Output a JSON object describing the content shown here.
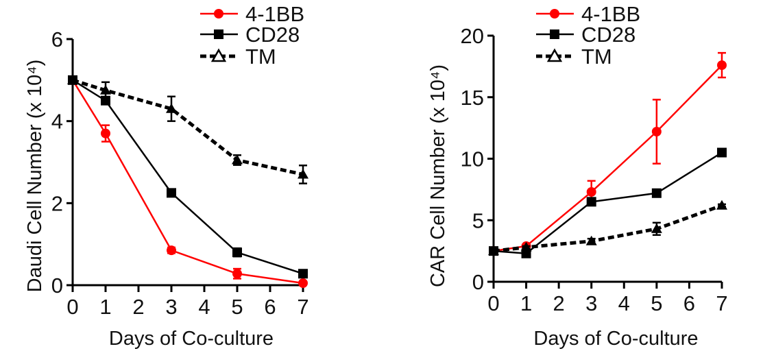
{
  "chart_data": [
    {
      "type": "line",
      "xlabel": "Days of Co-culture",
      "ylabel": "Daudi Cell Number (x 10⁴)",
      "xlim": [
        0,
        7
      ],
      "ylim": [
        0,
        6
      ],
      "xticks": [
        "0",
        "1",
        "2",
        "3",
        "4",
        "5",
        "6",
        "7"
      ],
      "yticks": [
        "0",
        "2",
        "4",
        "6"
      ],
      "grid": false,
      "legend": "top-right",
      "x": [
        0,
        1,
        3,
        5,
        7
      ],
      "series": [
        {
          "name": "4-1BB",
          "color": "#ff0000",
          "marker": "circle",
          "dash": false,
          "values": [
            5.0,
            3.7,
            0.85,
            0.28,
            0.05
          ],
          "errors": [
            0,
            0.2,
            0.07,
            0.12,
            0.03
          ]
        },
        {
          "name": "CD28",
          "color": "#000000",
          "marker": "square",
          "dash": false,
          "values": [
            5.0,
            4.5,
            2.25,
            0.8,
            0.28
          ],
          "errors": [
            0,
            0.05,
            0.05,
            0.1,
            0.04
          ]
        },
        {
          "name": "TM",
          "color": "#000000",
          "marker": "triangle",
          "dash": true,
          "values": [
            5.0,
            4.75,
            4.3,
            3.05,
            2.7
          ],
          "errors": [
            0,
            0.2,
            0.3,
            0.12,
            0.22
          ]
        }
      ]
    },
    {
      "type": "line",
      "xlabel": "Days of Co-culture",
      "ylabel": "CAR Cell Number (x 10⁴)",
      "xlim": [
        0,
        7
      ],
      "ylim": [
        0,
        20
      ],
      "xticks": [
        "0",
        "1",
        "2",
        "3",
        "4",
        "5",
        "6",
        "7"
      ],
      "yticks": [
        "0",
        "5",
        "10",
        "15",
        "20"
      ],
      "grid": false,
      "legend": "top",
      "x": [
        0,
        1,
        3,
        5,
        7
      ],
      "series": [
        {
          "name": "4-1BB",
          "color": "#ff0000",
          "marker": "circle",
          "dash": false,
          "values": [
            2.5,
            2.9,
            7.3,
            12.2,
            17.6
          ],
          "errors": [
            0,
            0.1,
            0.9,
            2.6,
            1.0
          ]
        },
        {
          "name": "CD28",
          "color": "#000000",
          "marker": "square",
          "dash": false,
          "values": [
            2.5,
            2.3,
            6.5,
            7.2,
            10.5
          ],
          "errors": [
            0,
            0.1,
            0.3,
            0.2,
            0.2
          ]
        },
        {
          "name": "TM",
          "color": "#000000",
          "marker": "triangle",
          "dash": true,
          "values": [
            2.5,
            2.8,
            3.3,
            4.3,
            6.2
          ],
          "errors": [
            0,
            0.1,
            0.2,
            0.5,
            0.1
          ]
        }
      ]
    }
  ]
}
